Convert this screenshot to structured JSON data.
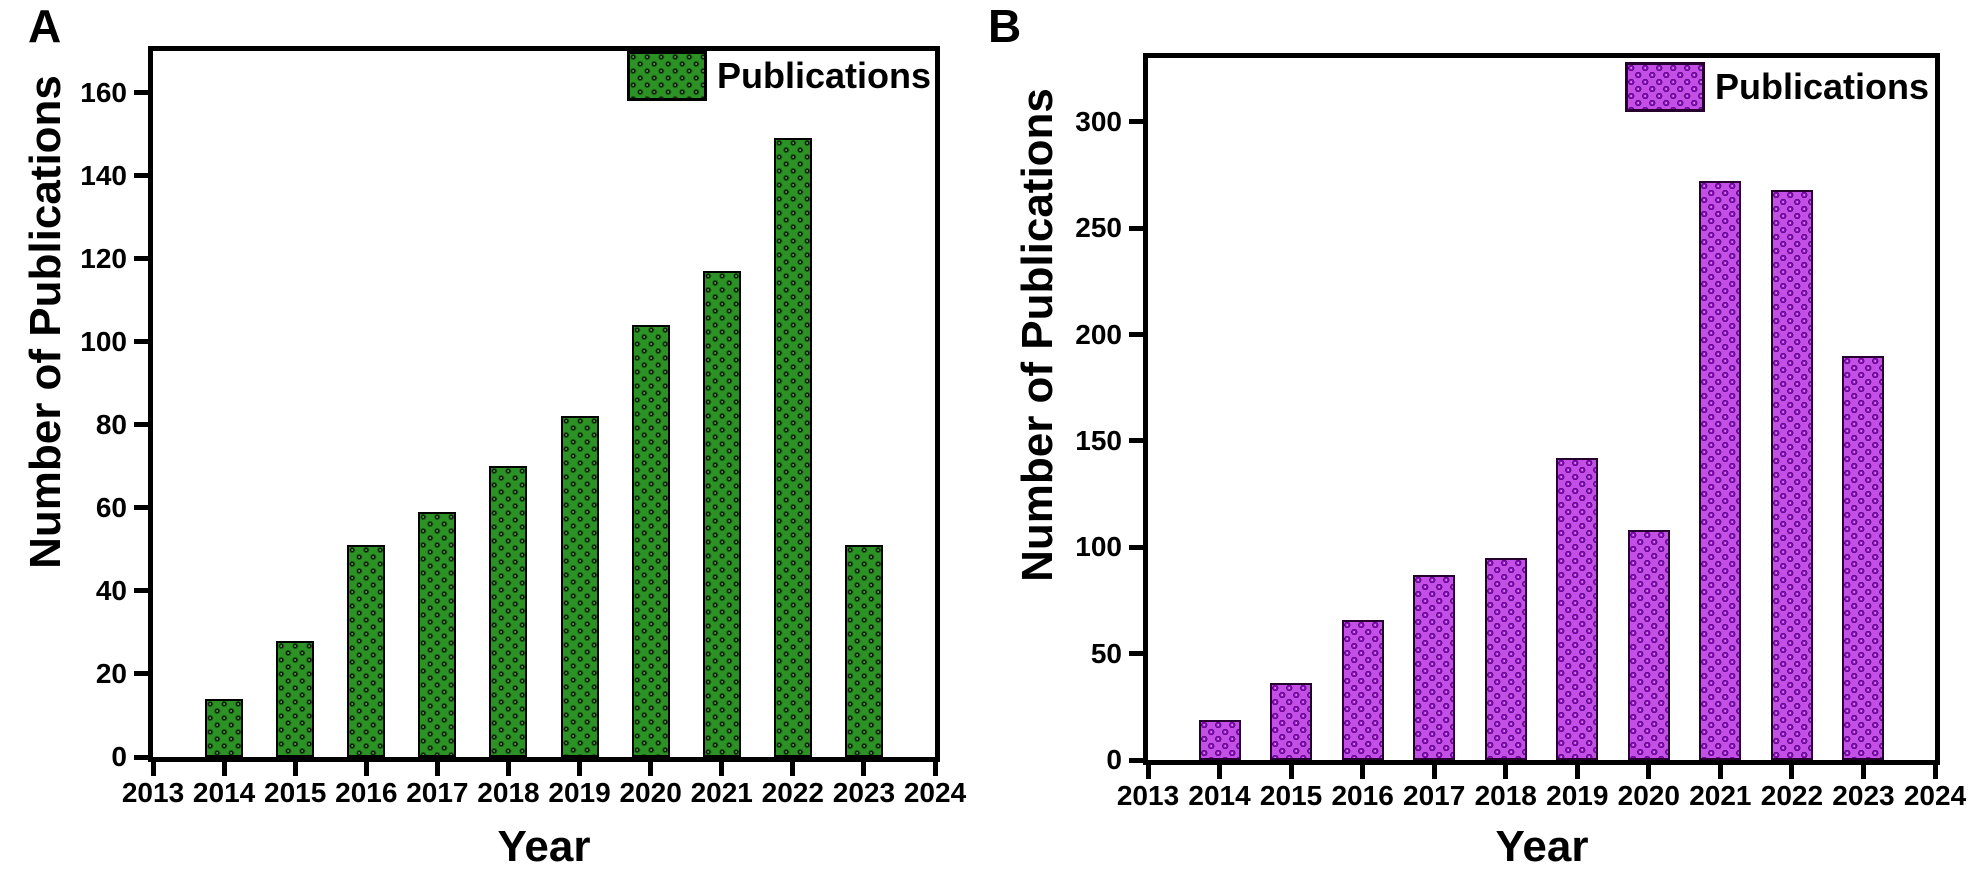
{
  "panels": [
    {
      "letter": "A",
      "y_axis_label": "Number of Publications",
      "x_axis_label": "Year",
      "legend_label": "Publications"
    },
    {
      "letter": "B",
      "y_axis_label": "Number of Publications",
      "x_axis_label": "Year",
      "legend_label": "Publications"
    }
  ],
  "chart_data": [
    {
      "type": "bar",
      "panel": "A",
      "title": "",
      "xlabel": "Year",
      "ylabel": "Number of Publications",
      "legend": [
        "Publications"
      ],
      "legend_position": "top-right-inside",
      "grid": false,
      "categories": [
        2014,
        2015,
        2016,
        2017,
        2018,
        2019,
        2020,
        2021,
        2022,
        2023
      ],
      "values": [
        14,
        28,
        51,
        59,
        70,
        82,
        104,
        117,
        149,
        51
      ],
      "xlim": [
        2013,
        2024
      ],
      "ylim": [
        0,
        170
      ],
      "yticks": [
        0,
        20,
        40,
        60,
        80,
        100,
        120,
        140,
        160
      ],
      "xticks": [
        2013,
        2014,
        2015,
        2016,
        2017,
        2018,
        2019,
        2020,
        2021,
        2022,
        2023,
        2024
      ],
      "colors": {
        "bar_background": "#2c9226",
        "bar_sphere": "#0a1c06",
        "bar_sphere_rim": "#1e6e15",
        "bar_outline": "#000000",
        "axis": "#000000"
      },
      "pattern": "checkerboard-spheres"
    },
    {
      "type": "bar",
      "panel": "B",
      "title": "",
      "xlabel": "Year",
      "ylabel": "Number of Publications",
      "legend": [
        "Publications"
      ],
      "legend_position": "top-right-inside",
      "grid": false,
      "categories": [
        2014,
        2015,
        2016,
        2017,
        2018,
        2019,
        2020,
        2021,
        2022,
        2023
      ],
      "values": [
        19,
        36,
        66,
        87,
        95,
        142,
        108,
        272,
        268,
        190
      ],
      "xlim": [
        2013,
        2024
      ],
      "ylim": [
        0,
        330
      ],
      "yticks": [
        0,
        50,
        100,
        150,
        200,
        250,
        300
      ],
      "xticks": [
        2013,
        2014,
        2015,
        2016,
        2017,
        2018,
        2019,
        2020,
        2021,
        2022,
        2023,
        2024
      ],
      "colors": {
        "bar_background": "#c44fe6",
        "bar_sphere": "#8a10bc",
        "bar_sphere_rim": "#5e0687",
        "bar_outline": "#26002e",
        "axis": "#000000"
      },
      "pattern": "checkerboard-spheres"
    }
  ]
}
